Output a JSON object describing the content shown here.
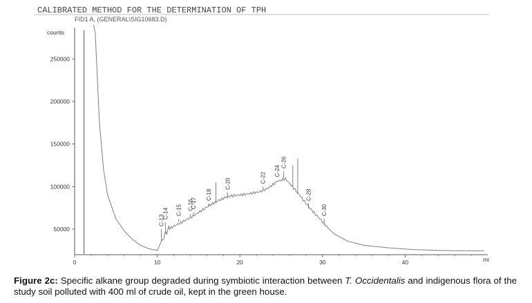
{
  "header": {
    "title": "CALIBRATED METHOD FOR THE DETERMINATION OF TPH",
    "subtitle": "FID1 A, (GENERAL\\SIG10683.D)"
  },
  "chart_data": {
    "type": "line",
    "title": "CALIBRATED METHOD FOR THE DETERMINATION OF TPH",
    "subtitle": "FID1 A, (GENERAL\\SIG10683.D)",
    "ylabel": "counts",
    "xlabel": "min",
    "xunit_label": "mi",
    "xlim": [
      0,
      50
    ],
    "ylim": [
      20000,
      290000
    ],
    "xticks": [
      0,
      10,
      20,
      30,
      40
    ],
    "yticks": [
      50000,
      100000,
      150000,
      200000,
      250000
    ],
    "ytick_labels": [
      "50000",
      "100000",
      "150000",
      "200000",
      "250000"
    ],
    "grid": false,
    "series": [
      {
        "name": "FID1 A",
        "x": [
          2.3,
          2.5,
          3,
          3.5,
          4,
          5,
          6,
          7,
          8,
          9,
          10,
          10.8,
          11.5,
          12.5,
          13.5,
          14.5,
          15.5,
          16.5,
          17.5,
          18.5,
          19.5,
          20.5,
          21.5,
          22.5,
          23.5,
          24.5,
          25.5,
          26.5,
          27.5,
          28.5,
          29.5,
          30.5,
          31.5,
          33,
          35,
          38,
          41,
          44,
          47,
          49.5
        ],
        "values": [
          290000,
          280000,
          175000,
          120000,
          90000,
          62000,
          48000,
          38000,
          31000,
          27000,
          25000,
          42000,
          52000,
          58000,
          63000,
          68000,
          73000,
          78000,
          82000,
          86000,
          88000,
          90000,
          93000,
          96000,
          101000,
          108000,
          110000,
          98000,
          85000,
          72000,
          62000,
          52000,
          44000,
          36000,
          31000,
          28000,
          26000,
          25000,
          24500,
          24500
        ]
      }
    ],
    "peaks": [
      {
        "label": "C-13",
        "x": 10.5,
        "y": 50000
      },
      {
        "label": "C-14",
        "x": 11.0,
        "y": 58000
      },
      {
        "label": "C-15",
        "x": 12.6,
        "y": 62000
      },
      {
        "label": "C-16",
        "x": 14.0,
        "y": 68000
      },
      {
        "label": "C-17",
        "x": 14.4,
        "y": 70000
      },
      {
        "label": "C-18",
        "x": 16.2,
        "y": 80000
      },
      {
        "label": "C-20",
        "x": 18.5,
        "y": 93000
      },
      {
        "label": "C-22",
        "x": 22.8,
        "y": 100000
      },
      {
        "label": "C-24",
        "x": 24.5,
        "y": 108000
      },
      {
        "label": "C-26",
        "x": 25.3,
        "y": 118000
      },
      {
        "label": "C-28",
        "x": 28.3,
        "y": 80000
      },
      {
        "label": "C-30",
        "x": 30.2,
        "y": 62000
      }
    ],
    "spike_peaks": [
      {
        "x": 17.1,
        "y": 105000
      },
      {
        "x": 26.4,
        "y": 125000
      },
      {
        "x": 27.0,
        "y": 133000
      }
    ]
  },
  "caption": {
    "label": "Figure 2c:",
    "text_before": " Specific alkane group degraded during symbiotic interaction between ",
    "species": "T. Occidentalis",
    "text_after": " and indigenous flora of the study soil polluted with 400 ml of crude oil, kept in the green house."
  },
  "colors": {
    "trace": "#7a7a9a",
    "axis": "#555555",
    "text": "#333333"
  }
}
